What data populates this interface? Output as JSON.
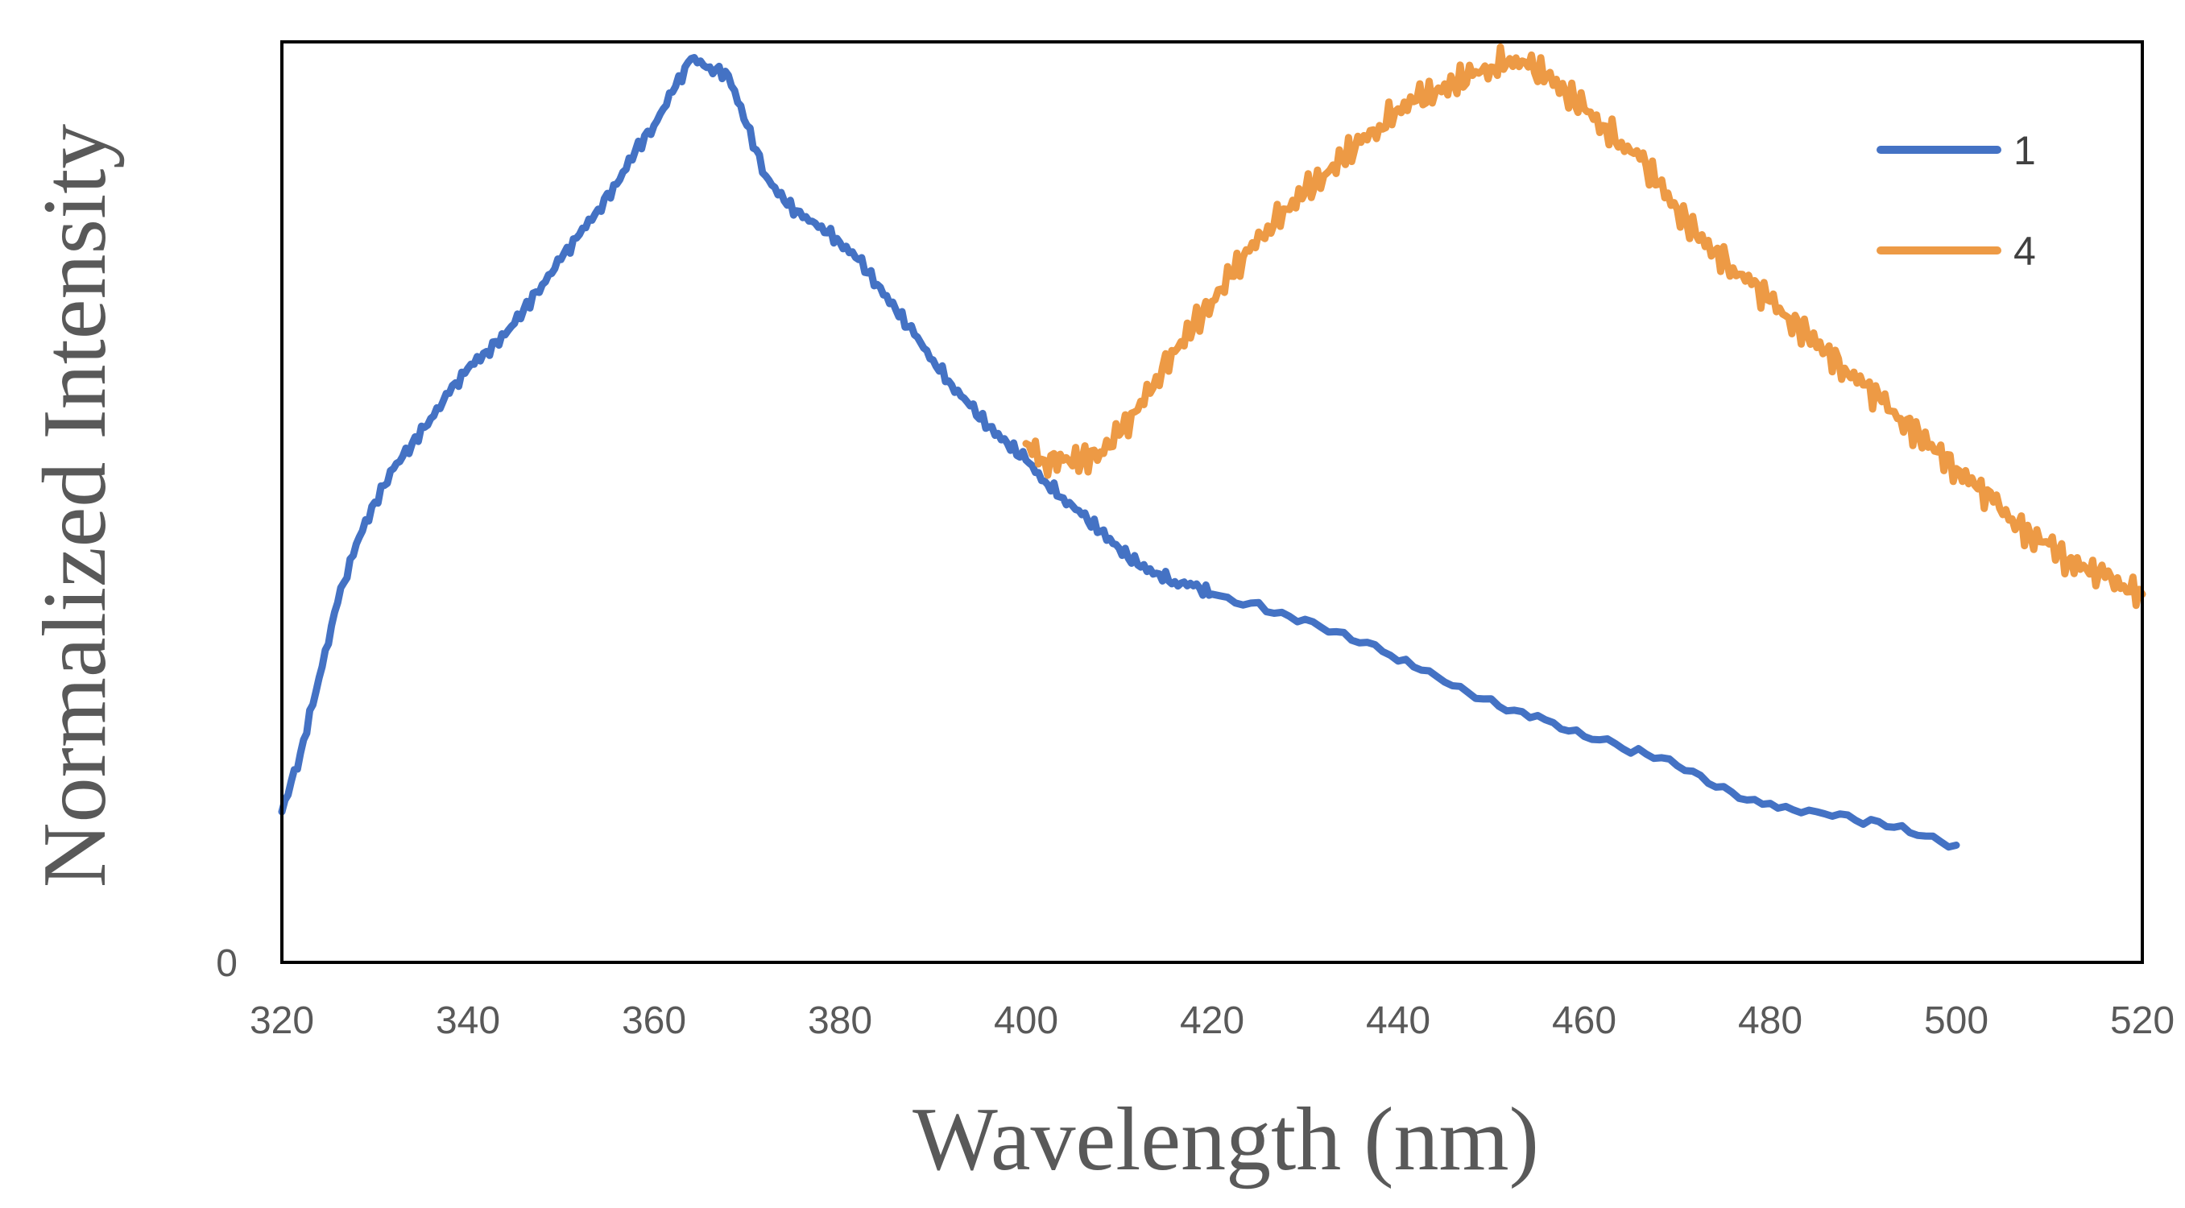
{
  "chart_data": {
    "type": "line",
    "title": "",
    "xlabel": "Wavelength (nm)",
    "ylabel": "Normalized Intensity",
    "xlim": [
      320,
      520
    ],
    "ylim": [
      0,
      1.1
    ],
    "x_ticks": [
      "320",
      "340",
      "360",
      "380",
      "400",
      "420",
      "440",
      "460",
      "480",
      "500",
      "520"
    ],
    "y_ticks": [
      "0"
    ],
    "legend_position": "top-right",
    "series": [
      {
        "name": "1",
        "color": "#4472C4",
        "x": [
          320,
          322,
          324,
          326,
          328,
          330,
          332,
          334,
          336,
          338,
          340,
          342,
          344,
          346,
          348,
          350,
          352,
          354,
          356,
          358,
          360,
          362,
          364,
          366,
          368,
          370,
          372,
          374,
          376,
          378,
          380,
          382,
          384,
          386,
          388,
          390,
          392,
          394,
          396,
          398,
          400,
          402,
          404,
          406,
          408,
          410,
          412,
          414,
          416,
          418,
          420,
          425,
          430,
          435,
          440,
          445,
          450,
          455,
          460,
          465,
          470,
          475,
          480,
          485,
          490,
          495,
          500
        ],
        "y": [
          0.18,
          0.25,
          0.34,
          0.43,
          0.5,
          0.55,
          0.59,
          0.62,
          0.65,
          0.68,
          0.71,
          0.73,
          0.75,
          0.78,
          0.81,
          0.84,
          0.87,
          0.9,
          0.93,
          0.97,
          1.0,
          1.04,
          1.08,
          1.07,
          1.06,
          1.0,
          0.94,
          0.91,
          0.89,
          0.88,
          0.86,
          0.84,
          0.81,
          0.78,
          0.75,
          0.72,
          0.69,
          0.665,
          0.64,
          0.62,
          0.6,
          0.575,
          0.555,
          0.535,
          0.515,
          0.495,
          0.475,
          0.465,
          0.455,
          0.45,
          0.44,
          0.43,
          0.41,
          0.385,
          0.36,
          0.335,
          0.315,
          0.295,
          0.27,
          0.25,
          0.235,
          0.21,
          0.19,
          0.18,
          0.165,
          0.155,
          0.14
        ]
      },
      {
        "name": "4",
        "color": "#ED9A45",
        "x": [
          400,
          402,
          404,
          406,
          408,
          410,
          412,
          414,
          416,
          418,
          420,
          422,
          424,
          426,
          428,
          430,
          432,
          434,
          436,
          438,
          440,
          442,
          444,
          446,
          448,
          450,
          452,
          454,
          456,
          458,
          460,
          462,
          464,
          466,
          468,
          470,
          472,
          474,
          476,
          478,
          480,
          482,
          484,
          486,
          488,
          490,
          492,
          494,
          496,
          498,
          500,
          502,
          504,
          506,
          508,
          510,
          512,
          514,
          516,
          518,
          520
        ],
        "y": [
          0.62,
          0.6,
          0.6,
          0.6,
          0.61,
          0.63,
          0.66,
          0.7,
          0.73,
          0.76,
          0.79,
          0.82,
          0.85,
          0.88,
          0.9,
          0.92,
          0.94,
          0.96,
          0.98,
          1.0,
          1.02,
          1.03,
          1.04,
          1.05,
          1.06,
          1.07,
          1.08,
          1.07,
          1.06,
          1.04,
          1.02,
          1.0,
          0.98,
          0.96,
          0.93,
          0.9,
          0.87,
          0.85,
          0.83,
          0.81,
          0.79,
          0.77,
          0.75,
          0.73,
          0.71,
          0.69,
          0.67,
          0.65,
          0.63,
          0.61,
          0.59,
          0.57,
          0.55,
          0.53,
          0.51,
          0.5,
          0.48,
          0.47,
          0.46,
          0.45,
          0.44
        ]
      }
    ]
  }
}
